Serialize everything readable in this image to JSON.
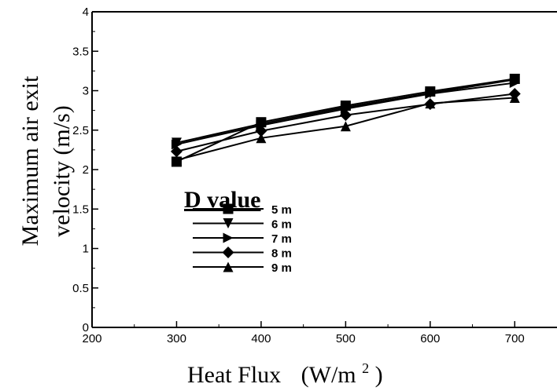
{
  "chart_data": {
    "type": "line",
    "xlabel": "Heat Flux",
    "xlabel_unit_prefix": "(W/m",
    "xlabel_unit_exp": "2",
    "xlabel_unit_suffix": ")",
    "ylabel_line1": "Maximum air exit",
    "ylabel_line2": "velocity (m/s)",
    "xlim": [
      200,
      750
    ],
    "ylim": [
      0,
      4
    ],
    "xticks": [
      200,
      300,
      400,
      500,
      600,
      700
    ],
    "yticks": [
      0,
      0.5,
      1,
      1.5,
      2,
      2.5,
      3,
      3.5,
      4
    ],
    "grid": false,
    "legend_title": "D value",
    "legend_position": "center-left",
    "x": [
      300,
      400,
      500,
      600,
      700
    ],
    "series": [
      {
        "name": "5 m",
        "marker": "square",
        "values": [
          2.1,
          2.6,
          2.81,
          2.99,
          3.15
        ]
      },
      {
        "name": "6 m",
        "marker": "triangle-down",
        "values": [
          2.34,
          2.58,
          2.79,
          2.97,
          3.14
        ]
      },
      {
        "name": "7 m",
        "marker": "triangle-right",
        "values": [
          2.32,
          2.56,
          2.77,
          2.96,
          3.1
        ]
      },
      {
        "name": "8 m",
        "marker": "diamond",
        "values": [
          2.23,
          2.49,
          2.69,
          2.83,
          2.96
        ]
      },
      {
        "name": "9 m",
        "marker": "triangle-up",
        "values": [
          2.12,
          2.4,
          2.55,
          2.84,
          2.91
        ]
      }
    ],
    "colors": {
      "line": "#000000",
      "background": "#ffffff"
    }
  }
}
